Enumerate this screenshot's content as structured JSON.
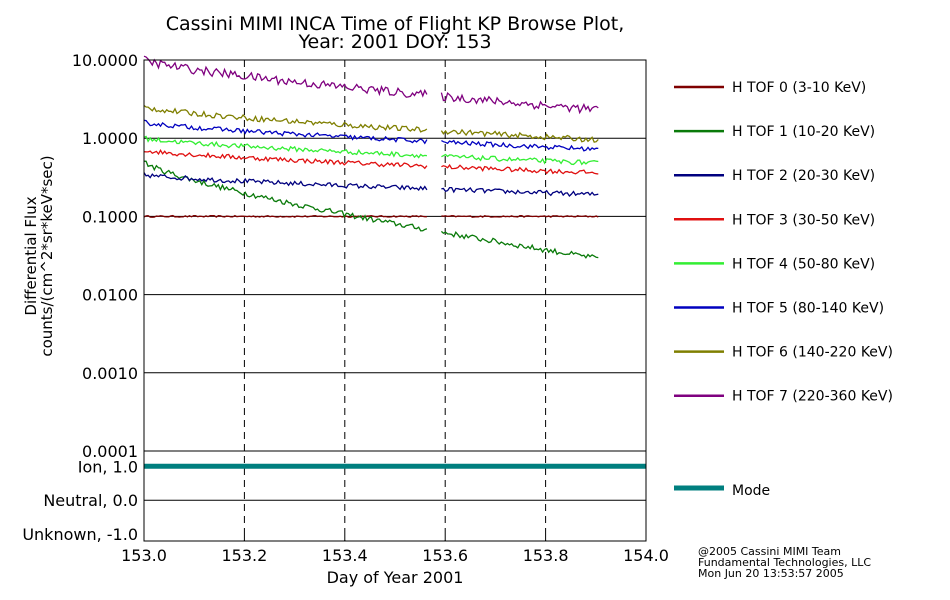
{
  "chart_data": {
    "type": "line",
    "title_line1": "Cassini MIMI INCA Time of Flight KP Browse Plot,",
    "title_line2": "Year: 2001 DOY: 153",
    "xlabel": "Day of Year 2001",
    "ylabel_line1": "Differential Flux",
    "ylabel_line2": "counts/(cm^2*sr*keV*sec)",
    "xlim": [
      153.0,
      154.0
    ],
    "x_ticks": [
      "153.0",
      "153.2",
      "153.4",
      "153.6",
      "153.8",
      "154.0"
    ],
    "y_scale": "log",
    "ylim": [
      0.0001,
      10.0
    ],
    "y_ticks": [
      "10.0000",
      "1.0000",
      "0.1000",
      "0.0100",
      "0.0010",
      "0.0001"
    ],
    "dashed_x_lines": [
      153.2,
      153.4,
      153.6,
      153.8
    ],
    "data_gap": [
      153.565,
      153.59
    ],
    "data_end": 153.905,
    "series": [
      {
        "name": "H TOF 0 (3-10 KeV)",
        "color": "#7f0000",
        "start": 0.1,
        "end": 0.1,
        "noise": 0.01
      },
      {
        "name": "H TOF 1 (10-20 KeV)",
        "color": "#0a7a0a",
        "start": 0.5,
        "end": 0.029,
        "noise": 0.035
      },
      {
        "name": "H TOF 2 (20-30 KeV)",
        "color": "#00007f",
        "start": 0.34,
        "end": 0.19,
        "noise": 0.03
      },
      {
        "name": "H TOF 3 (30-50 KeV)",
        "color": "#e01010",
        "start": 0.7,
        "end": 0.36,
        "noise": 0.03
      },
      {
        "name": "H TOF 4 (50-80 KeV)",
        "color": "#33ee33",
        "start": 1.0,
        "end": 0.48,
        "noise": 0.03
      },
      {
        "name": "H TOF 5 (80-140 KeV)",
        "color": "#0000bf",
        "start": 1.6,
        "end": 0.72,
        "noise": 0.03
      },
      {
        "name": "H TOF 6 (140-220 KeV)",
        "color": "#7f7f00",
        "start": 2.5,
        "end": 0.95,
        "noise": 0.035
      },
      {
        "name": "H TOF 7 (220-360 KeV)",
        "color": "#7f007f",
        "start": 10.0,
        "end": 2.3,
        "noise": 0.055
      }
    ],
    "mode_panel": {
      "y_ticks": [
        "Ion, 1.0",
        "Neutral, 0.0",
        "Unknown, -1.0"
      ],
      "ylim": [
        -1.2,
        1.45
      ],
      "mode_value": 1.0,
      "mode_label": "Mode",
      "mode_color": "#007f7f"
    },
    "credit": [
      "@2005 Cassini MIMI Team",
      "Fundamental Technologies, LLC",
      "Mon Jun 20 13:53:57 2005"
    ]
  }
}
